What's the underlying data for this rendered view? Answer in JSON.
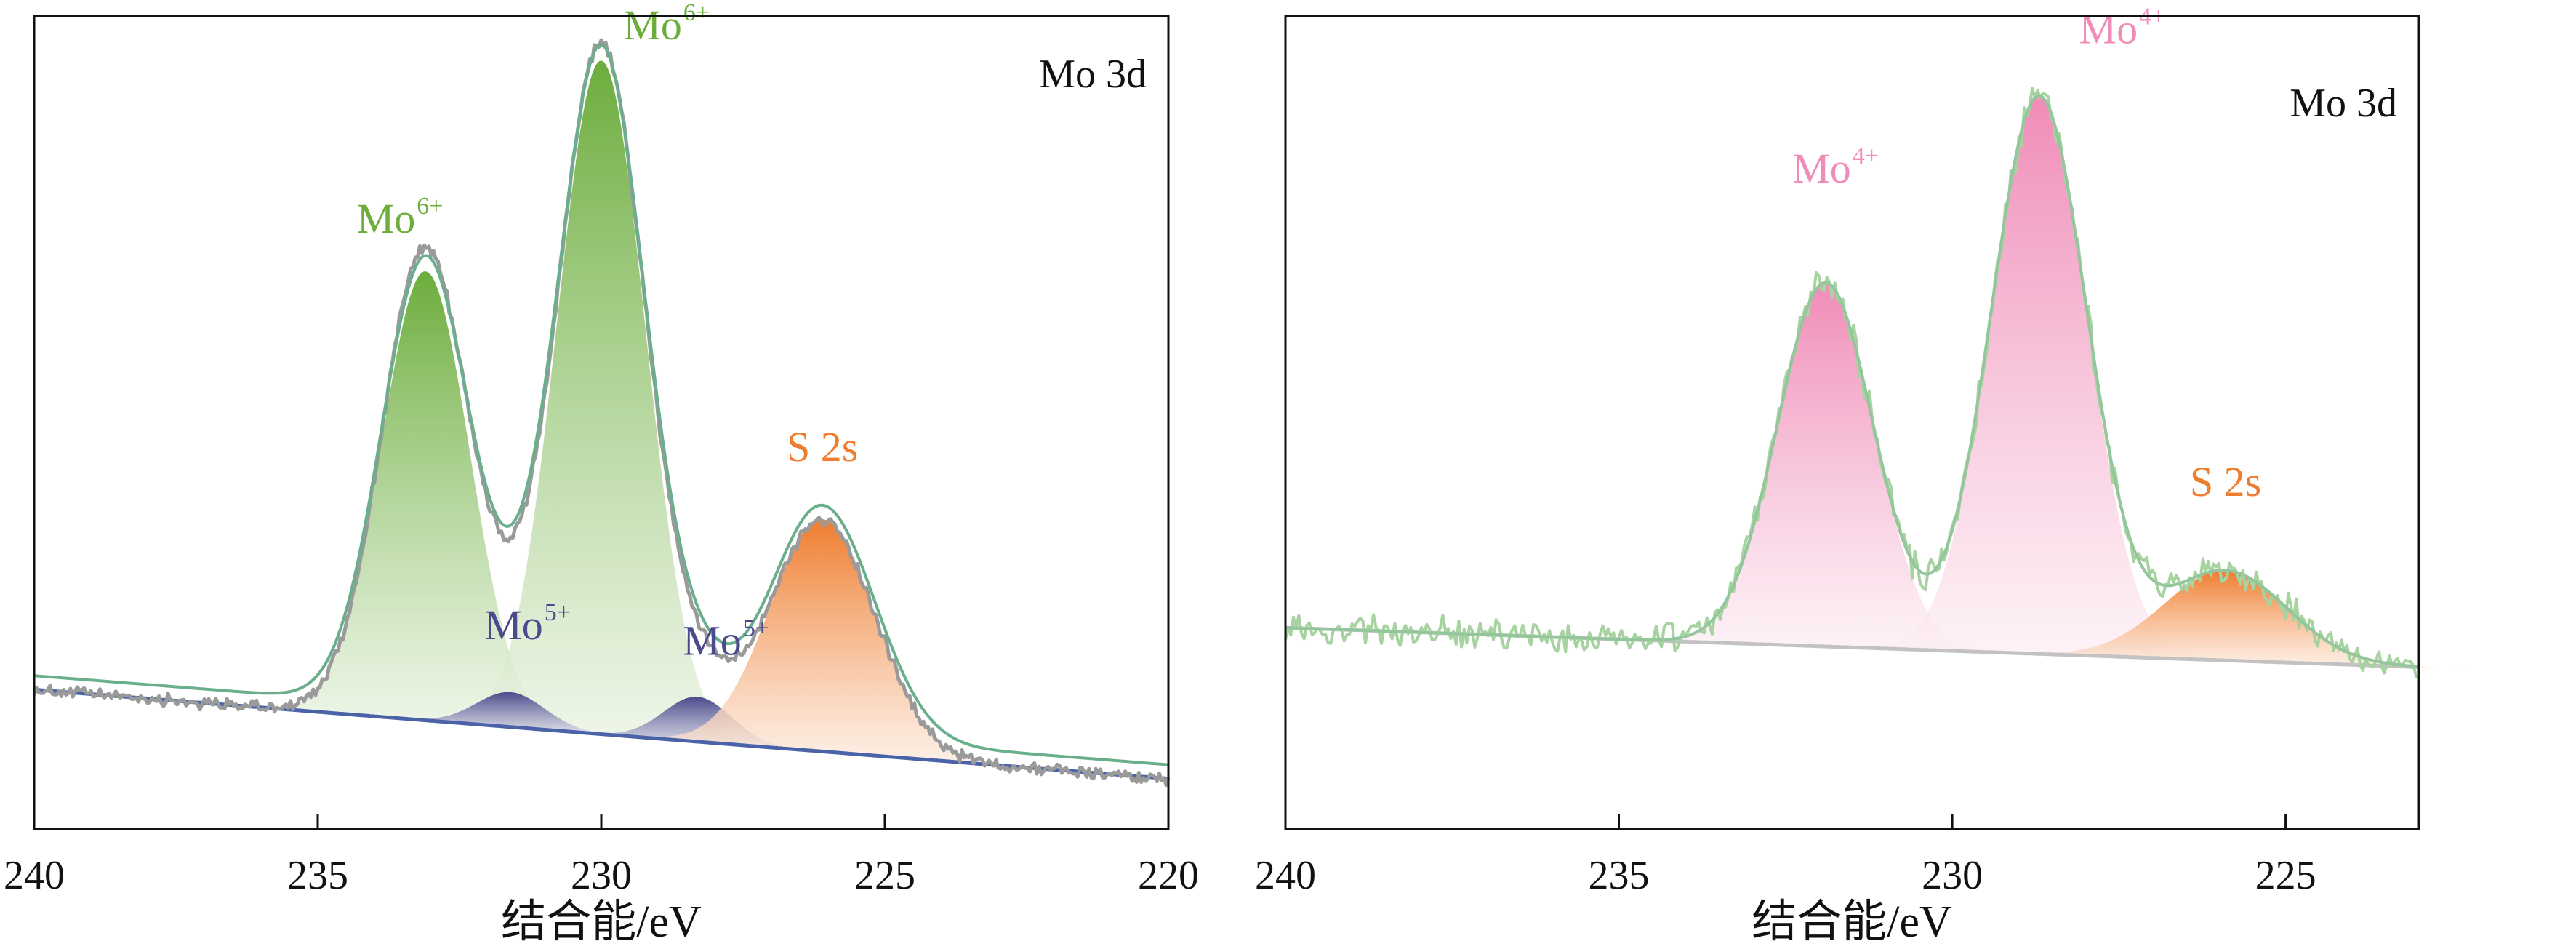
{
  "chart_data": [
    {
      "type": "line",
      "panel": "left",
      "title": "Mo 3d",
      "xlabel": "结合能/eV",
      "ylabel": "",
      "xlim": [
        240,
        220
      ],
      "ylim": [
        0,
        1.05
      ],
      "x_reversed": true,
      "x_ticks": [
        "240",
        "235",
        "230",
        "225",
        "220"
      ],
      "grid": false,
      "baseline": {
        "name": "Background",
        "color": "#4a62a8",
        "y_at_240": 0.18,
        "y_at_220": 0.065
      },
      "raw_curve": {
        "name": "Raw data",
        "color": "#9a9a9a",
        "noise": 0.012
      },
      "envelope": {
        "name": "Fitted envelope",
        "color": "#6aaf8c"
      },
      "components": [
        {
          "name": "Mo6+ 3d3/2",
          "label": "Mo",
          "sup": "6+",
          "center": 233.1,
          "height": 0.58,
          "sigma": 0.78,
          "color": "#6cad3c",
          "label_pos": [
            233.55,
            0.77
          ]
        },
        {
          "name": "Mo6+ 3d5/2",
          "label": "Mo",
          "sup": "6+",
          "center": 230.0,
          "height": 0.87,
          "sigma": 0.78,
          "color": "#6cad3c",
          "label_pos": [
            228.85,
            1.02
          ]
        },
        {
          "name": "Mo5+ 3d3/2",
          "label": "Mo",
          "sup": "5+",
          "center": 231.6,
          "height": 0.045,
          "sigma": 0.6,
          "color": "#4b4a8c",
          "label_pos": [
            231.3,
            0.245
          ]
        },
        {
          "name": "Mo5+ 3d5/2",
          "label": "Mo",
          "sup": "5+",
          "center": 228.3,
          "height": 0.058,
          "sigma": 0.6,
          "color": "#4b4a8c",
          "label_pos": [
            227.8,
            0.225
          ]
        },
        {
          "name": "S 2s",
          "label": "S 2s",
          "sup": "",
          "center": 226.1,
          "height": 0.3,
          "sigma": 0.92,
          "color": "#ef7d2e",
          "label_pos": [
            226.1,
            0.475
          ]
        }
      ],
      "panel_label": "Mo 3d"
    },
    {
      "type": "line",
      "panel": "right",
      "title": "Mo 3d",
      "xlabel": "结合能/eV",
      "ylabel": "",
      "xlim": [
        240,
        223
      ],
      "ylim": [
        0,
        1.05
      ],
      "x_reversed": true,
      "x_ticks": [
        "240",
        "235",
        "230",
        "225"
      ],
      "grid": false,
      "baseline": {
        "name": "Background",
        "color": "#c2c2c2",
        "y_at_240": 0.26,
        "y_at_220": 0.2
      },
      "raw_curve": {
        "name": "Raw data",
        "color": "#a6d3a0",
        "noise": 0.03
      },
      "envelope": {
        "name": "Fitted envelope",
        "color": "#93c79b"
      },
      "components": [
        {
          "name": "Mo4+ 3d3/2",
          "label": "Mo",
          "sup": "4+",
          "center": 231.9,
          "height": 0.47,
          "sigma": 0.72,
          "color": "#f08cb8",
          "label_pos": [
            231.75,
            0.835
          ]
        },
        {
          "name": "Mo4+ 3d5/2",
          "label": "Mo",
          "sup": "4+",
          "center": 228.7,
          "height": 0.72,
          "sigma": 0.72,
          "color": "#f08cb8",
          "label_pos": [
            227.45,
            1.015
          ]
        },
        {
          "name": "S 2s",
          "label": "S 2s",
          "sup": "",
          "center": 225.9,
          "height": 0.116,
          "sigma": 0.92,
          "color": "#ef7d2e",
          "label_pos": [
            225.9,
            0.43
          ]
        }
      ],
      "panel_label": "Mo 3d"
    }
  ]
}
